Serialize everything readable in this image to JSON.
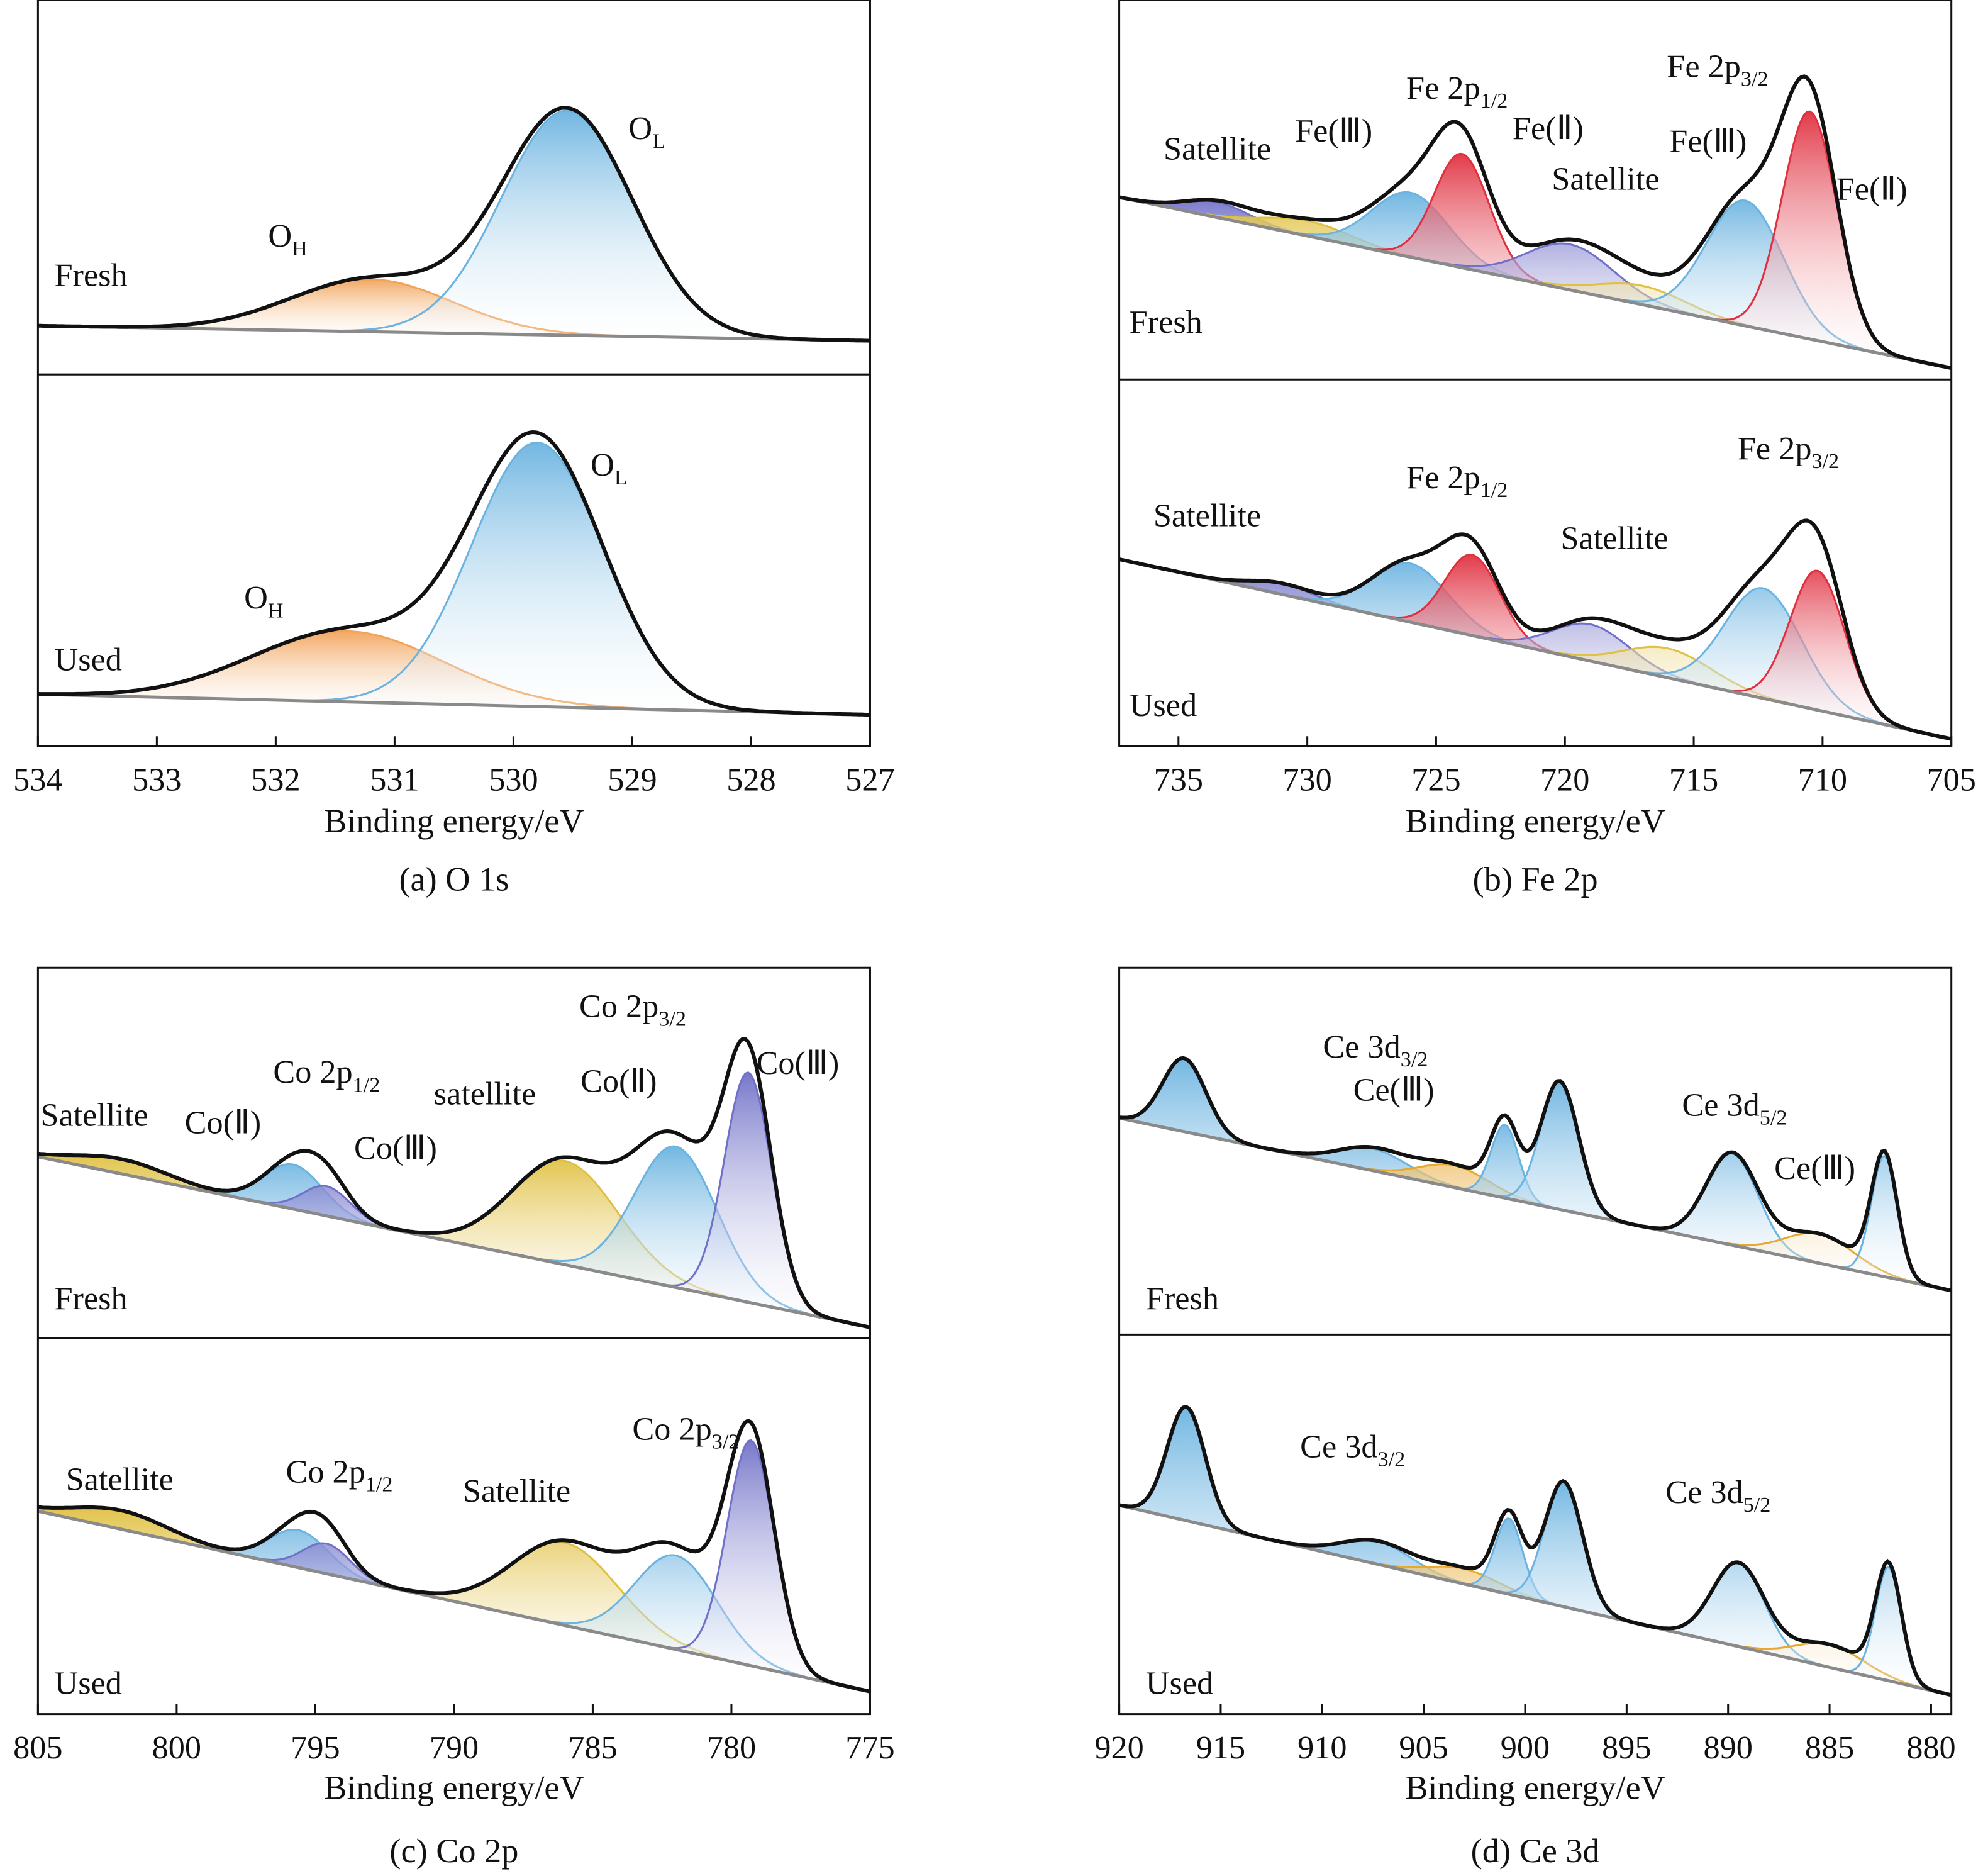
{
  "chart_data": [
    {
      "type": "line",
      "caption": "(a) O 1s",
      "xlabel": "Binding energy/eV",
      "xlim": [
        534,
        527
      ],
      "xticks": [
        "534",
        "533",
        "532",
        "531",
        "530",
        "529",
        "528",
        "527"
      ],
      "tick_values": [
        534,
        533,
        532,
        531,
        530,
        529,
        528,
        527
      ],
      "panels": [
        {
          "name": "Fresh",
          "background": [
            0.13,
            0.09
          ],
          "labels": [
            {
              "main": "O",
              "sub": "H"
            },
            {
              "main": "O",
              "sub": "L"
            }
          ],
          "peaks": [
            {
              "center": 531.2,
              "height": 0.14,
              "fwhm": 1.6,
              "color": "#f2a35a"
            },
            {
              "center": 529.55,
              "height": 0.6,
              "fwhm": 1.3,
              "color": "#6bb3e0"
            }
          ]
        },
        {
          "name": "Used",
          "background": [
            0.14,
            0.085
          ],
          "labels": [
            {
              "main": "O",
              "sub": "H"
            },
            {
              "main": "O",
              "sub": "L"
            }
          ],
          "peaks": [
            {
              "center": 531.4,
              "height": 0.19,
              "fwhm": 1.9,
              "color": "#f2a35a"
            },
            {
              "center": 529.8,
              "height": 0.71,
              "fwhm": 1.3,
              "color": "#6bb3e0"
            }
          ]
        }
      ]
    },
    {
      "type": "line",
      "caption": "(b) Fe 2p",
      "xlabel": "Binding energy/eV",
      "xlim": [
        737.3,
        705
      ],
      "xticks": [
        "735",
        "730",
        "725",
        "720",
        "715",
        "710",
        "705"
      ],
      "tick_values": [
        735,
        730,
        725,
        720,
        715,
        710,
        705
      ],
      "panels": [
        {
          "name": "Fresh",
          "background": [
            0.48,
            0.03
          ],
          "labels": [
            {
              "main": "Satellite"
            },
            {
              "main": "Fe(Ⅲ)"
            },
            {
              "main": "Fe 2p",
              "sub": "1/2"
            },
            {
              "main": "Fe(Ⅱ)"
            },
            {
              "main": "Satellite"
            },
            {
              "main": "Fe 2p",
              "sub": "3/2"
            },
            {
              "main": "Fe(Ⅲ)"
            },
            {
              "main": "Fe(Ⅱ)"
            }
          ],
          "peaks": [
            {
              "center": 733.5,
              "height": 0.04,
              "fwhm": 3,
              "color": "#7070c8"
            },
            {
              "center": 730,
              "height": 0.04,
              "fwhm": 4,
              "color": "#e0c040"
            },
            {
              "center": 726,
              "height": 0.17,
              "fwhm": 3.5,
              "color": "#6bb3e0"
            },
            {
              "center": 724,
              "height": 0.3,
              "fwhm": 2.5,
              "color": "#e03040"
            },
            {
              "center": 719.8,
              "height": 0.12,
              "fwhm": 4,
              "color": "#7070c8"
            },
            {
              "center": 717,
              "height": 0.05,
              "fwhm": 4,
              "color": "#e0c040"
            },
            {
              "center": 713,
              "height": 0.33,
              "fwhm": 3.5,
              "color": "#6bb3e0"
            },
            {
              "center": 710.5,
              "height": 0.6,
              "fwhm": 2.5,
              "color": "#e03040"
            }
          ]
        },
        {
          "name": "Used",
          "background": [
            0.51,
            0.02
          ],
          "labels": [
            {
              "main": "Satellite"
            },
            {
              "main": "Fe 2p",
              "sub": "1/2"
            },
            {
              "main": "Satellite"
            },
            {
              "main": "Fe 2p",
              "sub": "3/2"
            }
          ],
          "peaks": [
            {
              "center": 731,
              "height": 0.03,
              "fwhm": 3,
              "color": "#7070c8"
            },
            {
              "center": 726,
              "height": 0.16,
              "fwhm": 3.5,
              "color": "#6bb3e0"
            },
            {
              "center": 723.6,
              "height": 0.22,
              "fwhm": 2.5,
              "color": "#e03040"
            },
            {
              "center": 719,
              "height": 0.1,
              "fwhm": 3.5,
              "color": "#7070c8"
            },
            {
              "center": 716,
              "height": 0.08,
              "fwhm": 4,
              "color": "#e0c040"
            },
            {
              "center": 712.3,
              "height": 0.3,
              "fwhm": 3.5,
              "color": "#6bb3e0"
            },
            {
              "center": 710.2,
              "height": 0.38,
              "fwhm": 2.5,
              "color": "#e03040"
            }
          ]
        }
      ]
    },
    {
      "type": "line",
      "caption": "(c) Co 2p",
      "xlabel": "Binding energy/eV",
      "xlim": [
        805,
        775
      ],
      "xticks": [
        "805",
        "800",
        "795",
        "790",
        "785",
        "780",
        "775"
      ],
      "tick_values": [
        805,
        800,
        795,
        790,
        785,
        780,
        775
      ],
      "panels": [
        {
          "name": "Fresh",
          "background": [
            0.49,
            0.03
          ],
          "labels": [
            {
              "main": "Satellite"
            },
            {
              "main": "Co(Ⅱ)"
            },
            {
              "main": "Co 2p",
              "sub": "1/2"
            },
            {
              "main": "Co(Ⅲ)"
            },
            {
              "main": "satellite"
            },
            {
              "main": "Co(Ⅱ)"
            },
            {
              "main": "Co 2p",
              "sub": "3/2"
            },
            {
              "main": "Co(Ⅲ)"
            }
          ],
          "peaks": [
            {
              "center": 802,
              "height": 0.04,
              "fwhm": 4,
              "color": "#e0c040"
            },
            {
              "center": 795.8,
              "height": 0.12,
              "fwhm": 2.5,
              "color": "#6bb3e0"
            },
            {
              "center": 794.6,
              "height": 0.08,
              "fwhm": 2,
              "color": "#7070c8"
            },
            {
              "center": 786,
              "height": 0.28,
              "fwhm": 4.5,
              "color": "#e0c040"
            },
            {
              "center": 782,
              "height": 0.38,
              "fwhm": 3.5,
              "color": "#6bb3e0"
            },
            {
              "center": 779.4,
              "height": 0.62,
              "fwhm": 2,
              "color": "#7070c8"
            }
          ]
        },
        {
          "name": "Used",
          "background": [
            0.54,
            0.06
          ],
          "labels": [
            {
              "main": "Satellite"
            },
            {
              "main": "Co 2p",
              "sub": "1/2"
            },
            {
              "main": "Satellite"
            },
            {
              "main": "Co 2p",
              "sub": "3/2"
            }
          ],
          "peaks": [
            {
              "center": 802,
              "height": 0.05,
              "fwhm": 4,
              "color": "#e0c040"
            },
            {
              "center": 795.6,
              "height": 0.1,
              "fwhm": 2.5,
              "color": "#6bb3e0"
            },
            {
              "center": 794.6,
              "height": 0.08,
              "fwhm": 2,
              "color": "#7070c8"
            },
            {
              "center": 786,
              "height": 0.22,
              "fwhm": 4.5,
              "color": "#e0c040"
            },
            {
              "center": 782,
              "height": 0.25,
              "fwhm": 3.5,
              "color": "#6bb3e0"
            },
            {
              "center": 779.3,
              "height": 0.6,
              "fwhm": 2,
              "color": "#7070c8"
            }
          ]
        }
      ]
    },
    {
      "type": "line",
      "caption": "(d) Ce 3d",
      "xlabel": "Binding energy/eV",
      "xlim": [
        920,
        879
      ],
      "xticks": [
        "920",
        "915",
        "910",
        "905",
        "900",
        "895",
        "890",
        "885",
        "880"
      ],
      "tick_values": [
        920,
        915,
        910,
        905,
        900,
        895,
        890,
        885,
        880
      ],
      "panels": [
        {
          "name": "Fresh",
          "background": [
            0.59,
            0.12
          ],
          "labels": [
            {
              "main": "Ce 3d",
              "sub": "3/2"
            },
            {
              "main": "Ce(Ⅲ)"
            },
            {
              "main": "Ce 3d",
              "sub": "5/2"
            },
            {
              "main": "Ce(Ⅲ)"
            }
          ],
          "peaks": [
            {
              "center": 916.8,
              "height": 0.2,
              "fwhm": 2.5,
              "color": "#6bb3e0"
            },
            {
              "center": 907.5,
              "height": 0.06,
              "fwhm": 4,
              "color": "#6bb3e0"
            },
            {
              "center": 903.5,
              "height": 0.06,
              "fwhm": 4,
              "color": "#e8a830"
            },
            {
              "center": 901,
              "height": 0.2,
              "fwhm": 1.6,
              "color": "#6bb3e0"
            },
            {
              "center": 898.3,
              "height": 0.35,
              "fwhm": 2.2,
              "color": "#6bb3e0"
            },
            {
              "center": 889.8,
              "height": 0.25,
              "fwhm": 3,
              "color": "#6bb3e0"
            },
            {
              "center": 885.5,
              "height": 0.08,
              "fwhm": 4,
              "color": "#e8a830"
            },
            {
              "center": 882.3,
              "height": 0.33,
              "fwhm": 1.5,
              "color": "#6bb3e0"
            }
          ]
        },
        {
          "name": "Used",
          "background": [
            0.55,
            0.05
          ],
          "labels": [
            {
              "main": "Ce 3d",
              "sub": "3/2"
            },
            {
              "main": "Ce 3d",
              "sub": "5/2"
            }
          ],
          "peaks": [
            {
              "center": 916.7,
              "height": 0.3,
              "fwhm": 2.2,
              "color": "#6bb3e0"
            },
            {
              "center": 907.3,
              "height": 0.06,
              "fwhm": 4,
              "color": "#6bb3e0"
            },
            {
              "center": 903,
              "height": 0.04,
              "fwhm": 4,
              "color": "#e8a830"
            },
            {
              "center": 900.8,
              "height": 0.2,
              "fwhm": 1.6,
              "color": "#6bb3e0"
            },
            {
              "center": 898.1,
              "height": 0.33,
              "fwhm": 2.2,
              "color": "#6bb3e0"
            },
            {
              "center": 889.5,
              "height": 0.22,
              "fwhm": 3,
              "color": "#6bb3e0"
            },
            {
              "center": 885,
              "height": 0.06,
              "fwhm": 4,
              "color": "#e8a830"
            },
            {
              "center": 882.1,
              "height": 0.3,
              "fwhm": 1.5,
              "color": "#6bb3e0"
            }
          ]
        }
      ]
    }
  ]
}
